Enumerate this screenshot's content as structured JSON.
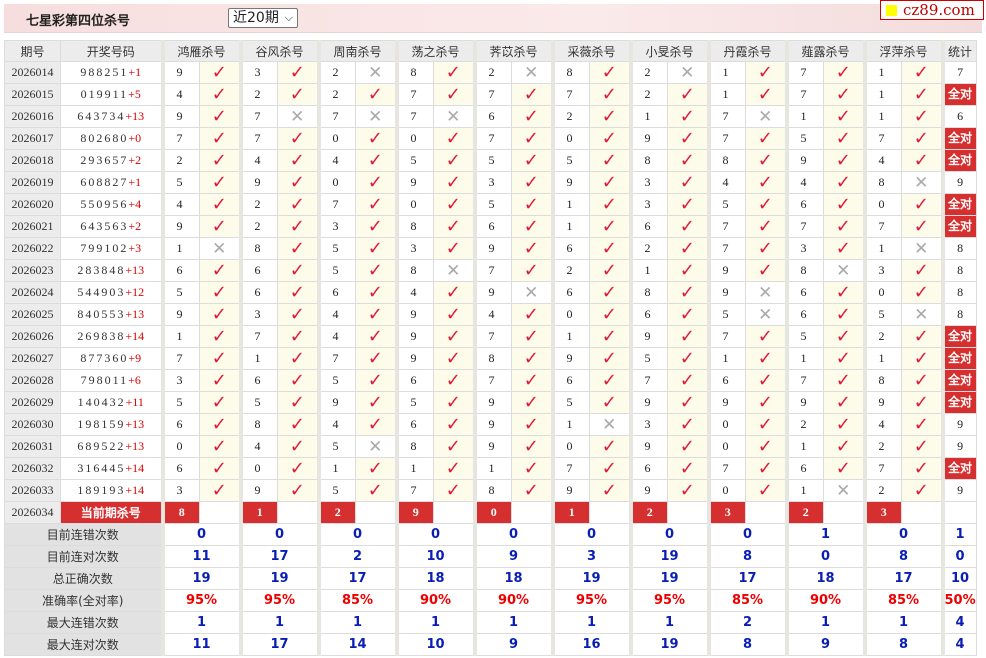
{
  "header": {
    "title": "七星彩第四位杀号",
    "range_select": "近20期",
    "logo": "cz89.com"
  },
  "columns": {
    "issue": "期号",
    "draw": "开奖号码",
    "predictors": [
      "鸿雁杀号",
      "谷风杀号",
      "周南杀号",
      "荡之杀号",
      "荠苡杀号",
      "采薇杀号",
      "小旻杀号",
      "丹霞杀号",
      "薤露杀号",
      "浮萍杀号"
    ],
    "stat": "统计"
  },
  "all_correct_label": "全对",
  "rows": [
    {
      "issue": "2026014",
      "draw": "988251",
      "plus": "+1",
      "picks": [
        [
          9,
          1
        ],
        [
          3,
          1
        ],
        [
          2,
          0
        ],
        [
          8,
          1
        ],
        [
          2,
          0
        ],
        [
          8,
          1
        ],
        [
          2,
          0
        ],
        [
          1,
          1
        ],
        [
          7,
          1
        ],
        [
          1,
          1
        ]
      ],
      "stat": "7"
    },
    {
      "issue": "2026015",
      "draw": "019911",
      "plus": "+5",
      "picks": [
        [
          4,
          1
        ],
        [
          2,
          1
        ],
        [
          2,
          1
        ],
        [
          7,
          1
        ],
        [
          7,
          1
        ],
        [
          7,
          1
        ],
        [
          2,
          1
        ],
        [
          1,
          1
        ],
        [
          7,
          1
        ],
        [
          1,
          1
        ]
      ],
      "stat": "全对"
    },
    {
      "issue": "2026016",
      "draw": "643734",
      "plus": "+13",
      "picks": [
        [
          9,
          1
        ],
        [
          7,
          0
        ],
        [
          7,
          0
        ],
        [
          7,
          0
        ],
        [
          6,
          1
        ],
        [
          2,
          1
        ],
        [
          1,
          1
        ],
        [
          7,
          0
        ],
        [
          1,
          1
        ],
        [
          1,
          1
        ]
      ],
      "stat": "6"
    },
    {
      "issue": "2026017",
      "draw": "802680",
      "plus": "+0",
      "picks": [
        [
          7,
          1
        ],
        [
          7,
          1
        ],
        [
          0,
          1
        ],
        [
          0,
          1
        ],
        [
          7,
          1
        ],
        [
          0,
          1
        ],
        [
          9,
          1
        ],
        [
          7,
          1
        ],
        [
          5,
          1
        ],
        [
          7,
          1
        ]
      ],
      "stat": "全对"
    },
    {
      "issue": "2026018",
      "draw": "293657",
      "plus": "+2",
      "picks": [
        [
          2,
          1
        ],
        [
          4,
          1
        ],
        [
          4,
          1
        ],
        [
          5,
          1
        ],
        [
          5,
          1
        ],
        [
          5,
          1
        ],
        [
          8,
          1
        ],
        [
          8,
          1
        ],
        [
          9,
          1
        ],
        [
          4,
          1
        ]
      ],
      "stat": "全对"
    },
    {
      "issue": "2026019",
      "draw": "608827",
      "plus": "+1",
      "picks": [
        [
          5,
          1
        ],
        [
          9,
          1
        ],
        [
          0,
          1
        ],
        [
          9,
          1
        ],
        [
          3,
          1
        ],
        [
          9,
          1
        ],
        [
          3,
          1
        ],
        [
          4,
          1
        ],
        [
          4,
          1
        ],
        [
          8,
          0
        ]
      ],
      "stat": "9"
    },
    {
      "issue": "2026020",
      "draw": "550956",
      "plus": "+4",
      "picks": [
        [
          4,
          1
        ],
        [
          2,
          1
        ],
        [
          7,
          1
        ],
        [
          0,
          1
        ],
        [
          5,
          1
        ],
        [
          1,
          1
        ],
        [
          3,
          1
        ],
        [
          5,
          1
        ],
        [
          6,
          1
        ],
        [
          0,
          1
        ]
      ],
      "stat": "全对"
    },
    {
      "issue": "2026021",
      "draw": "643563",
      "plus": "+2",
      "picks": [
        [
          9,
          1
        ],
        [
          2,
          1
        ],
        [
          3,
          1
        ],
        [
          8,
          1
        ],
        [
          6,
          1
        ],
        [
          1,
          1
        ],
        [
          6,
          1
        ],
        [
          7,
          1
        ],
        [
          7,
          1
        ],
        [
          7,
          1
        ]
      ],
      "stat": "全对"
    },
    {
      "issue": "2026022",
      "draw": "799102",
      "plus": "+3",
      "picks": [
        [
          1,
          0
        ],
        [
          8,
          1
        ],
        [
          5,
          1
        ],
        [
          3,
          1
        ],
        [
          9,
          1
        ],
        [
          6,
          1
        ],
        [
          2,
          1
        ],
        [
          7,
          1
        ],
        [
          3,
          1
        ],
        [
          1,
          0
        ]
      ],
      "stat": "8"
    },
    {
      "issue": "2026023",
      "draw": "283848",
      "plus": "+13",
      "picks": [
        [
          6,
          1
        ],
        [
          6,
          1
        ],
        [
          5,
          1
        ],
        [
          8,
          0
        ],
        [
          7,
          1
        ],
        [
          2,
          1
        ],
        [
          1,
          1
        ],
        [
          9,
          1
        ],
        [
          8,
          0
        ],
        [
          3,
          1
        ]
      ],
      "stat": "8"
    },
    {
      "issue": "2026024",
      "draw": "544903",
      "plus": "+12",
      "picks": [
        [
          5,
          1
        ],
        [
          6,
          1
        ],
        [
          6,
          1
        ],
        [
          4,
          1
        ],
        [
          9,
          0
        ],
        [
          6,
          1
        ],
        [
          8,
          1
        ],
        [
          9,
          0
        ],
        [
          6,
          1
        ],
        [
          0,
          1
        ]
      ],
      "stat": "8"
    },
    {
      "issue": "2026025",
      "draw": "840553",
      "plus": "+13",
      "picks": [
        [
          9,
          1
        ],
        [
          3,
          1
        ],
        [
          4,
          1
        ],
        [
          9,
          1
        ],
        [
          4,
          1
        ],
        [
          0,
          1
        ],
        [
          6,
          1
        ],
        [
          5,
          0
        ],
        [
          6,
          1
        ],
        [
          5,
          0
        ]
      ],
      "stat": "8"
    },
    {
      "issue": "2026026",
      "draw": "269838",
      "plus": "+14",
      "picks": [
        [
          1,
          1
        ],
        [
          7,
          1
        ],
        [
          4,
          1
        ],
        [
          9,
          1
        ],
        [
          7,
          1
        ],
        [
          1,
          1
        ],
        [
          9,
          1
        ],
        [
          7,
          1
        ],
        [
          5,
          1
        ],
        [
          2,
          1
        ]
      ],
      "stat": "全对"
    },
    {
      "issue": "2026027",
      "draw": "877360",
      "plus": "+9",
      "picks": [
        [
          7,
          1
        ],
        [
          1,
          1
        ],
        [
          7,
          1
        ],
        [
          9,
          1
        ],
        [
          8,
          1
        ],
        [
          9,
          1
        ],
        [
          5,
          1
        ],
        [
          1,
          1
        ],
        [
          1,
          1
        ],
        [
          1,
          1
        ]
      ],
      "stat": "全对"
    },
    {
      "issue": "2026028",
      "draw": "798011",
      "plus": "+6",
      "picks": [
        [
          3,
          1
        ],
        [
          6,
          1
        ],
        [
          5,
          1
        ],
        [
          6,
          1
        ],
        [
          7,
          1
        ],
        [
          6,
          1
        ],
        [
          7,
          1
        ],
        [
          6,
          1
        ],
        [
          7,
          1
        ],
        [
          8,
          1
        ]
      ],
      "stat": "全对"
    },
    {
      "issue": "2026029",
      "draw": "140432",
      "plus": "+11",
      "picks": [
        [
          5,
          1
        ],
        [
          5,
          1
        ],
        [
          9,
          1
        ],
        [
          5,
          1
        ],
        [
          9,
          1
        ],
        [
          5,
          1
        ],
        [
          9,
          1
        ],
        [
          9,
          1
        ],
        [
          9,
          1
        ],
        [
          9,
          1
        ]
      ],
      "stat": "全对"
    },
    {
      "issue": "2026030",
      "draw": "198159",
      "plus": "+13",
      "picks": [
        [
          6,
          1
        ],
        [
          8,
          1
        ],
        [
          4,
          1
        ],
        [
          6,
          1
        ],
        [
          9,
          1
        ],
        [
          1,
          0
        ],
        [
          3,
          1
        ],
        [
          0,
          1
        ],
        [
          2,
          1
        ],
        [
          4,
          1
        ]
      ],
      "stat": "9"
    },
    {
      "issue": "2026031",
      "draw": "689522",
      "plus": "+13",
      "picks": [
        [
          0,
          1
        ],
        [
          4,
          1
        ],
        [
          5,
          0
        ],
        [
          8,
          1
        ],
        [
          9,
          1
        ],
        [
          0,
          1
        ],
        [
          9,
          1
        ],
        [
          0,
          1
        ],
        [
          1,
          1
        ],
        [
          2,
          1
        ]
      ],
      "stat": "9"
    },
    {
      "issue": "2026032",
      "draw": "316445",
      "plus": "+14",
      "picks": [
        [
          6,
          1
        ],
        [
          0,
          1
        ],
        [
          1,
          1
        ],
        [
          1,
          1
        ],
        [
          1,
          1
        ],
        [
          7,
          1
        ],
        [
          6,
          1
        ],
        [
          7,
          1
        ],
        [
          6,
          1
        ],
        [
          7,
          1
        ]
      ],
      "stat": "全对"
    },
    {
      "issue": "2026033",
      "draw": "189193",
      "plus": "+14",
      "picks": [
        [
          3,
          1
        ],
        [
          9,
          1
        ],
        [
          5,
          1
        ],
        [
          7,
          1
        ],
        [
          8,
          1
        ],
        [
          9,
          1
        ],
        [
          9,
          1
        ],
        [
          0,
          1
        ],
        [
          1,
          0
        ],
        [
          2,
          1
        ]
      ],
      "stat": "9"
    }
  ],
  "current": {
    "issue": "2026034",
    "label": "当前期杀号",
    "picks": [
      "8",
      "1",
      "2",
      "9",
      "0",
      "1",
      "2",
      "3",
      "2",
      "3"
    ]
  },
  "stats": [
    {
      "label": "目前连错次数",
      "values": [
        "0",
        "0",
        "0",
        "0",
        "0",
        "0",
        "0",
        "0",
        "1",
        "0",
        "1"
      ]
    },
    {
      "label": "目前连对次数",
      "values": [
        "11",
        "17",
        "2",
        "10",
        "9",
        "3",
        "19",
        "8",
        "0",
        "8",
        "0"
      ]
    },
    {
      "label": "总正确次数",
      "values": [
        "19",
        "19",
        "17",
        "18",
        "18",
        "19",
        "19",
        "17",
        "18",
        "17",
        "10"
      ]
    },
    {
      "label": "准确率(全对率)",
      "values": [
        "95%",
        "95%",
        "85%",
        "90%",
        "90%",
        "95%",
        "95%",
        "85%",
        "90%",
        "85%",
        "50%"
      ],
      "highlight": true
    },
    {
      "label": "最大连错次数",
      "values": [
        "1",
        "1",
        "1",
        "1",
        "1",
        "1",
        "1",
        "2",
        "1",
        "1",
        "4"
      ]
    },
    {
      "label": "最大连对次数",
      "values": [
        "11",
        "17",
        "14",
        "10",
        "9",
        "16",
        "19",
        "8",
        "9",
        "8",
        "4"
      ]
    }
  ],
  "colors": {
    "check": "#e0193a",
    "accent_red": "#d62f2f",
    "stat_blue": "#0a1eb4"
  }
}
